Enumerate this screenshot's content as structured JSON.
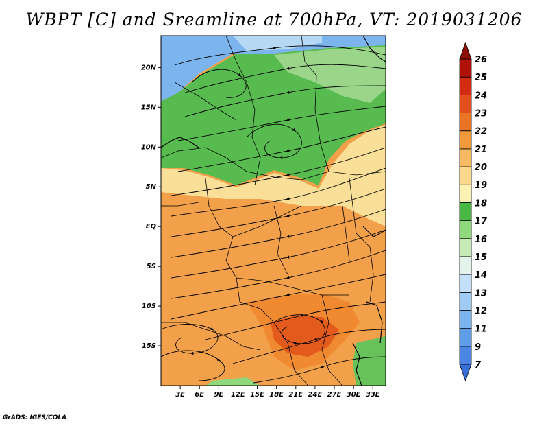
{
  "title": "WBPT [C] and Sreamline at 700hPa, VT: 2019031206",
  "credit": "GrADS: IGES/COLA",
  "map": {
    "lon_range": [
      0,
      35
    ],
    "lat_range": [
      -20,
      24
    ],
    "lat_ticks": [
      {
        "value": 20,
        "label": "20N"
      },
      {
        "value": 15,
        "label": "15N"
      },
      {
        "value": 10,
        "label": "10N"
      },
      {
        "value": 5,
        "label": "5N"
      },
      {
        "value": 0,
        "label": "EQ"
      },
      {
        "value": -5,
        "label": "5S"
      },
      {
        "value": -10,
        "label": "10S"
      },
      {
        "value": -15,
        "label": "15S"
      }
    ],
    "lon_ticks": [
      {
        "value": 3,
        "label": "3E"
      },
      {
        "value": 6,
        "label": "6E"
      },
      {
        "value": 9,
        "label": "9E"
      },
      {
        "value": 12,
        "label": "12E"
      },
      {
        "value": 15,
        "label": "15E"
      },
      {
        "value": 18,
        "label": "18E"
      },
      {
        "value": 21,
        "label": "21E"
      },
      {
        "value": 24,
        "label": "24E"
      },
      {
        "value": 27,
        "label": "27E"
      },
      {
        "value": 30,
        "label": "30E"
      },
      {
        "value": 33,
        "label": "33E"
      }
    ]
  },
  "colorbar": {
    "levels": [
      "7",
      "9",
      "11",
      "12",
      "13",
      "14",
      "15",
      "16",
      "17",
      "18",
      "19",
      "20",
      "21",
      "22",
      "23",
      "24",
      "25",
      "26"
    ],
    "colors": [
      "#3a6fd8",
      "#4a86e2",
      "#5f9de8",
      "#7bb3ef",
      "#9fcbf5",
      "#c3e0f8",
      "#e3f3ec",
      "#c7ebb6",
      "#8fd87c",
      "#49b845",
      "#fbf2b3",
      "#fad88c",
      "#f6bb62",
      "#f19a3c",
      "#ea7426",
      "#e34f1c",
      "#d42c12",
      "#b0120a",
      "#8c0c06"
    ]
  }
}
